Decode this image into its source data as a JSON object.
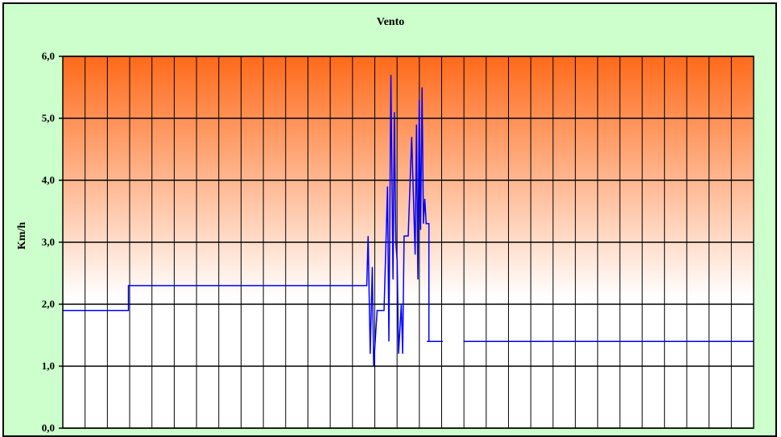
{
  "chart_data": {
    "type": "line",
    "title": "Vento",
    "xlabel": "",
    "ylabel": "Km/h",
    "ylim": [
      0,
      6
    ],
    "yticks": [
      "0,0",
      "1,0",
      "2,0",
      "3,0",
      "4,0",
      "5,0",
      "6,0"
    ],
    "grid": true,
    "legend": "none",
    "background_gradient": [
      "#ffffff",
      "#ff6a1a"
    ],
    "line_color": "#0000ff",
    "x": [
      0,
      0.095,
      0.095,
      0.44,
      0.442,
      0.445,
      0.448,
      0.45,
      0.455,
      0.46,
      0.465,
      0.47,
      0.472,
      0.475,
      0.478,
      0.48,
      0.482,
      0.484,
      0.486,
      0.488,
      0.49,
      0.492,
      0.494,
      0.496,
      0.498,
      0.5,
      0.505,
      0.51,
      0.512,
      0.514,
      0.516,
      0.518,
      0.52,
      0.522,
      0.524,
      0.526,
      0.528,
      0.53,
      0.53,
      0.527,
      0.527,
      0.55,
      0.55,
      0.58,
      0.58,
      0.87,
      0.87,
      1.0
    ],
    "values": [
      1.9,
      1.9,
      2.3,
      2.3,
      3.1,
      1.2,
      2.6,
      1.0,
      1.9,
      1.9,
      1.9,
      3.9,
      1.4,
      5.7,
      2.4,
      5.1,
      3.0,
      2.7,
      1.2,
      1.6,
      2.0,
      1.2,
      3.1,
      3.1,
      3.1,
      3.1,
      4.7,
      2.8,
      4.9,
      2.4,
      5.3,
      3.2,
      5.5,
      3.3,
      3.7,
      3.3,
      3.3,
      3.3,
      1.4,
      1.4,
      1.4,
      1.4,
      null,
      null,
      1.4,
      1.4,
      1.4,
      1.4
    ]
  }
}
